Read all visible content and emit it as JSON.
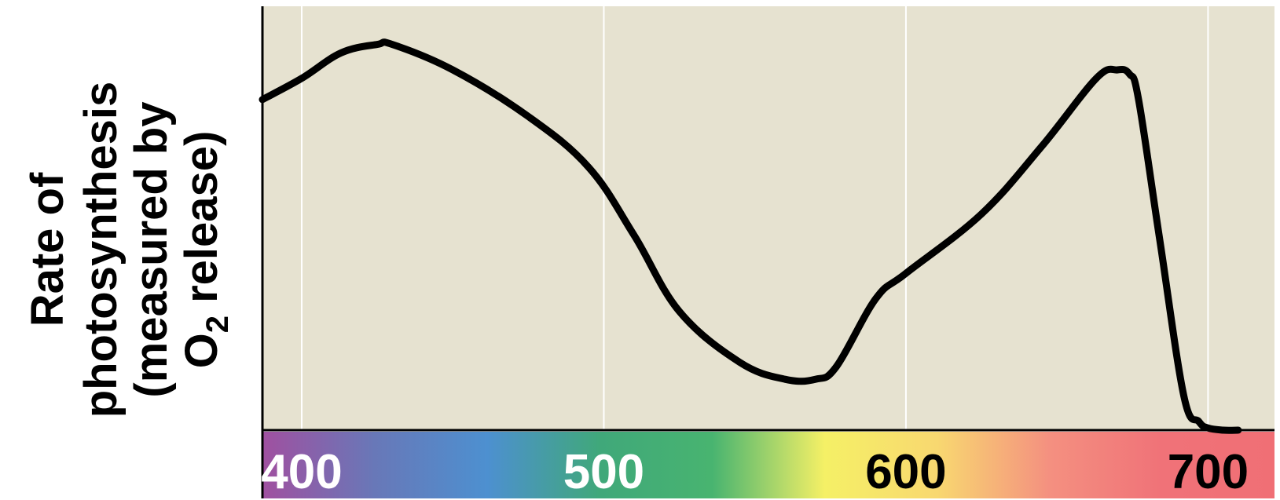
{
  "chart_data": {
    "type": "line",
    "title": "",
    "xlabel": "",
    "ylabel_lines": [
      "Rate of",
      "photosynthesis",
      "(measured by",
      "O",
      "2",
      " release)"
    ],
    "x_ticks": [
      "400",
      "500",
      "600",
      "700"
    ],
    "x_tick_values": [
      400,
      500,
      600,
      700
    ],
    "xlim": [
      387,
      722
    ],
    "ylim": [
      0,
      1
    ],
    "y_ticks": [],
    "grid": "vertical",
    "series": [
      {
        "x": [
          387,
          400,
          413,
          425,
          430,
          450,
          475,
          495,
          510,
          525,
          545,
          560,
          570,
          577,
          590,
          600,
          625,
          645,
          663,
          670,
          674,
          677,
          684,
          692,
          697,
          700,
          705,
          710
        ],
        "y": [
          0.78,
          0.83,
          0.89,
          0.91,
          0.91,
          0.85,
          0.74,
          0.62,
          0.46,
          0.28,
          0.16,
          0.12,
          0.12,
          0.15,
          0.31,
          0.37,
          0.51,
          0.67,
          0.83,
          0.85,
          0.84,
          0.78,
          0.45,
          0.08,
          0.02,
          0.005,
          0.0,
          0.0
        ]
      }
    ],
    "colors": {
      "plot_background": "#e6e2d0",
      "curve": "#000000",
      "gridline": "#ffffff",
      "axis": "#000000",
      "spectrum": [
        "#a050a0",
        "#6878b8",
        "#4d90d0",
        "#40a87a",
        "#48b470",
        "#f5f066",
        "#f8d870",
        "#f49080",
        "#f07278",
        "#f06f75"
      ],
      "tick_label_colors": [
        "#ffffff",
        "#ffffff",
        "#000000",
        "#000000"
      ]
    }
  }
}
